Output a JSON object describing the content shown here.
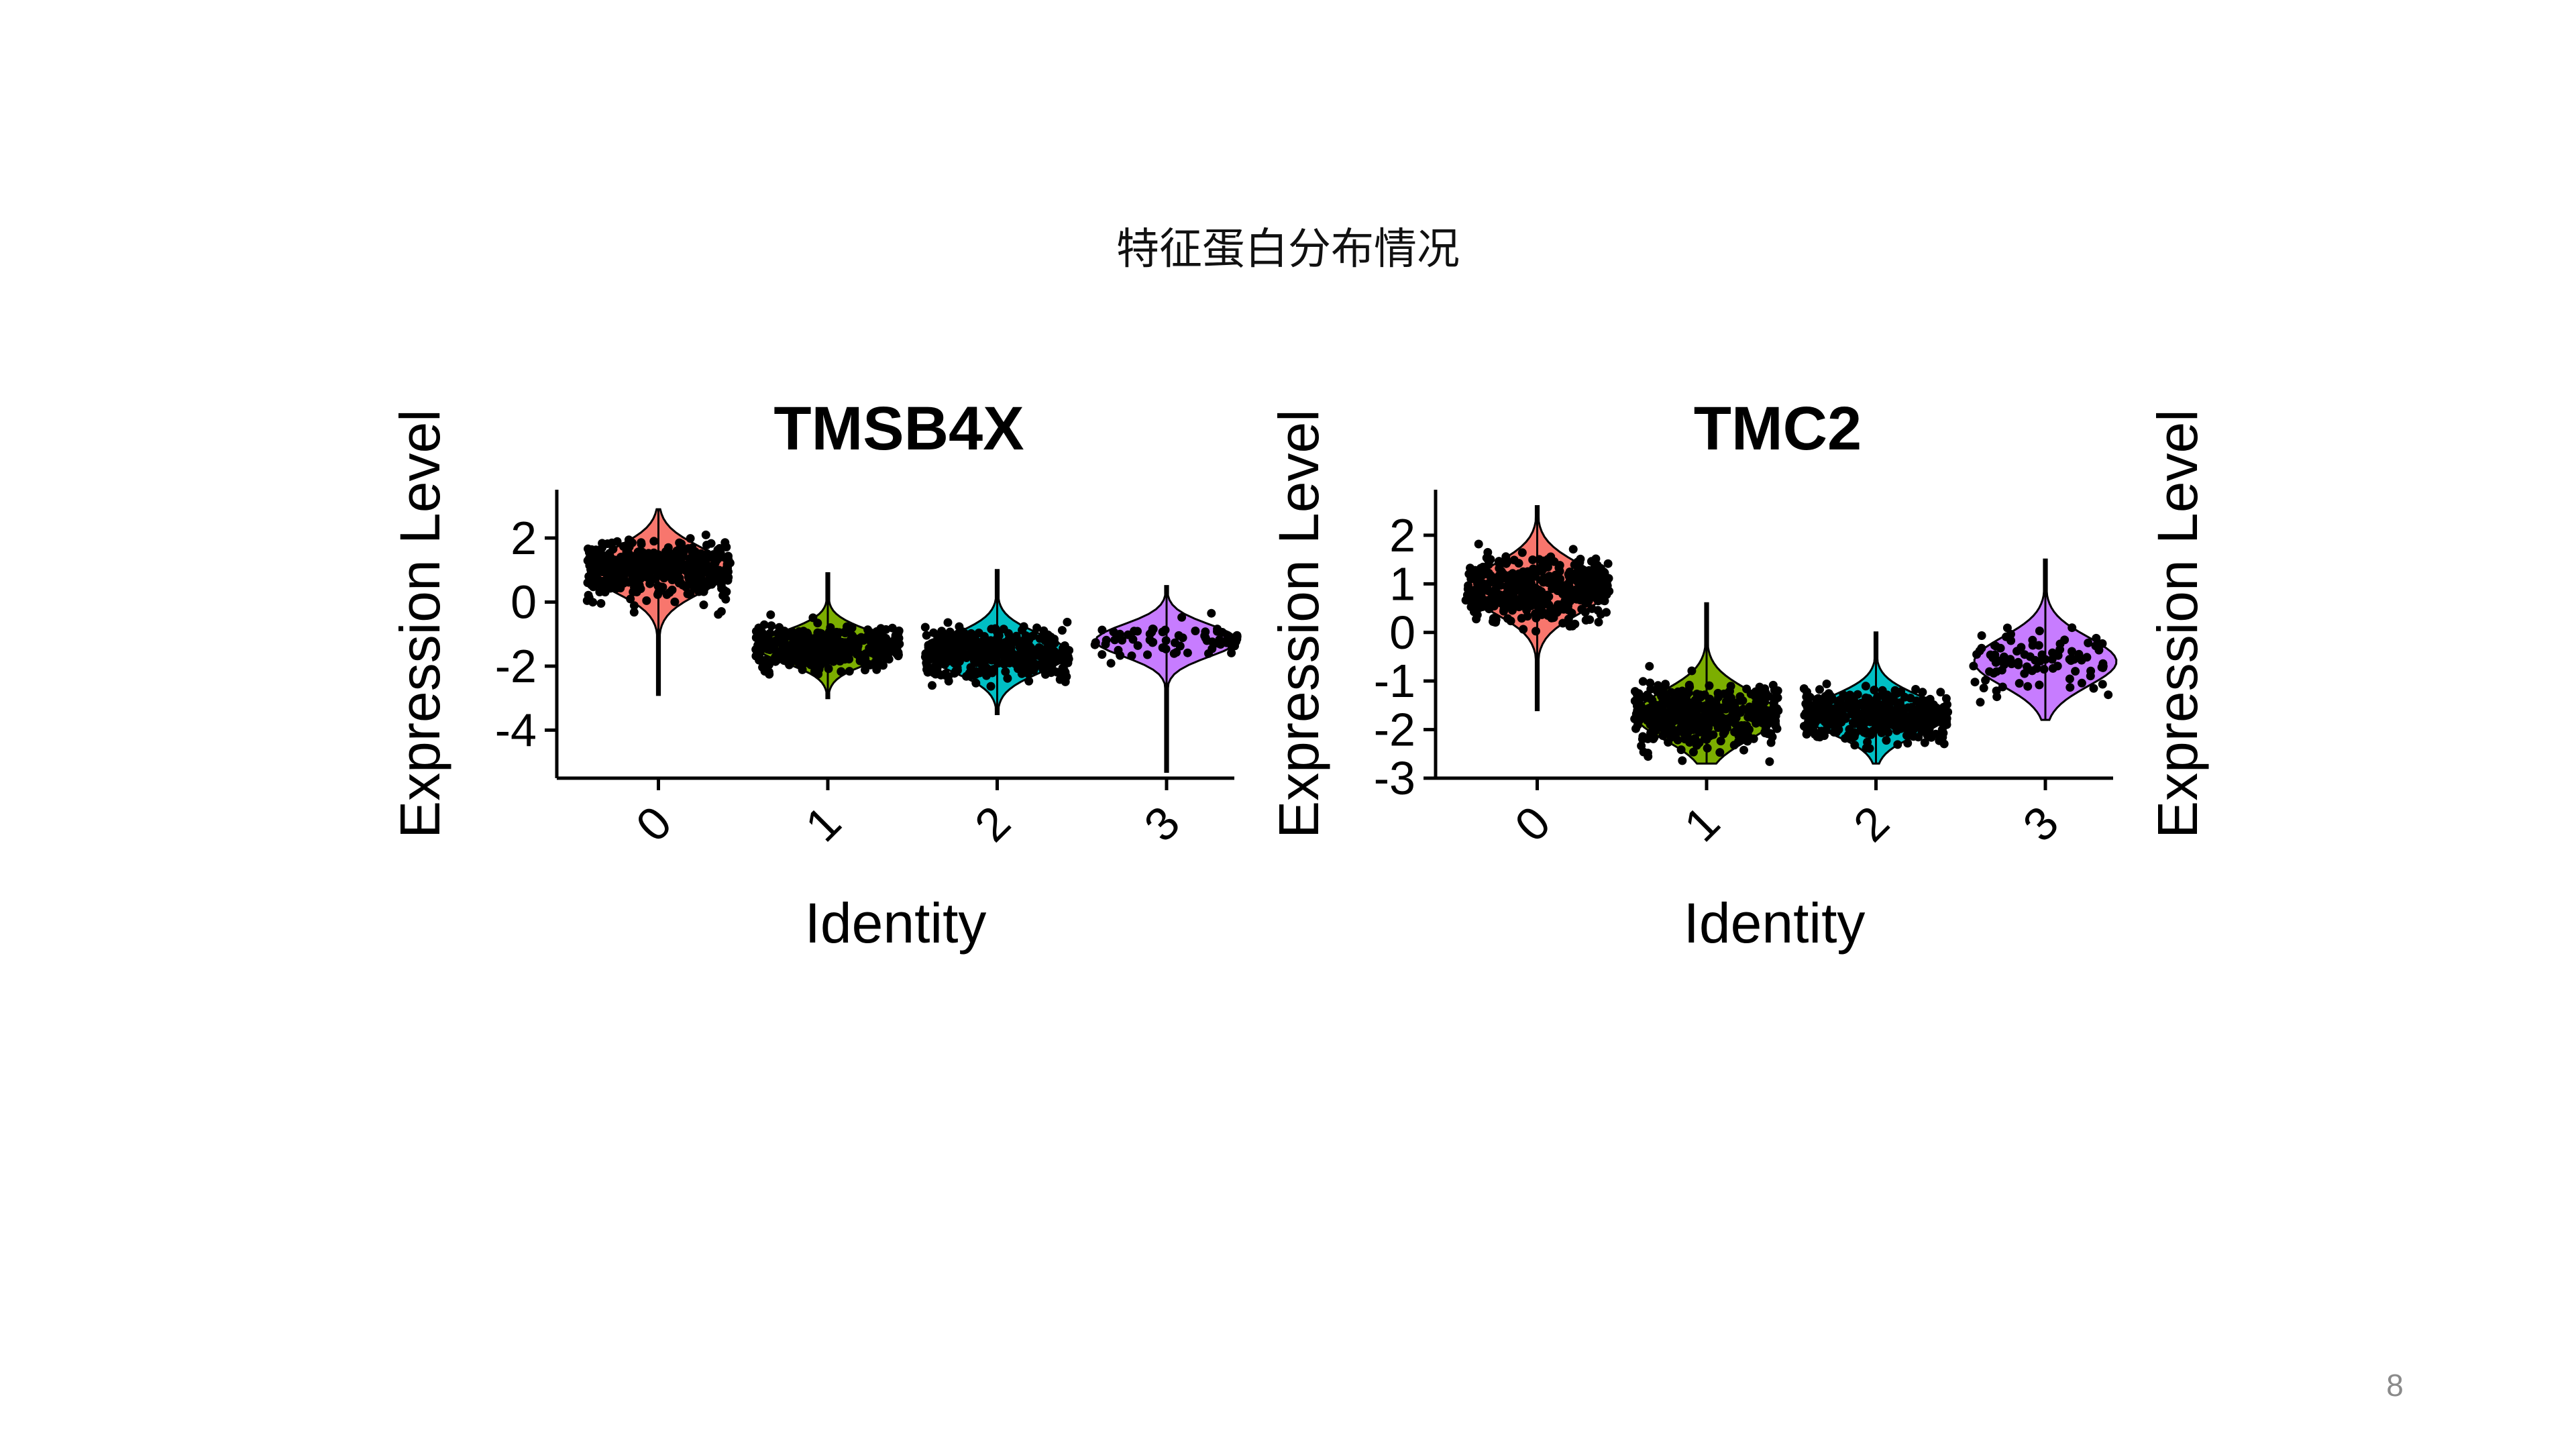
{
  "slide": {
    "title": "特征蛋白分布情况",
    "page_number": "8"
  },
  "chart_data": [
    {
      "type": "violin",
      "title": "TMSB4X",
      "xlabel": "Identity",
      "ylabel": "Expression Level",
      "categories": [
        "0",
        "1",
        "2",
        "3"
      ],
      "ylim": [
        -5.5,
        3.3
      ],
      "yticks": [
        2,
        0,
        -2,
        -4
      ],
      "jitter_points": true,
      "series": [
        {
          "category": "0",
          "color": "#F8766D",
          "min": -2.9,
          "max": 2.9,
          "median": 1.0,
          "spread": 0.7
        },
        {
          "category": "1",
          "color": "#7CAE00",
          "min": -3.0,
          "max": 0.9,
          "median": -1.4,
          "spread": 0.5
        },
        {
          "category": "2",
          "color": "#00BFC4",
          "min": -3.5,
          "max": 1.0,
          "median": -1.6,
          "spread": 0.6
        },
        {
          "category": "3",
          "color": "#C77CFF",
          "min": -5.3,
          "max": 0.5,
          "median": -1.2,
          "spread": 0.5
        }
      ]
    },
    {
      "type": "violin",
      "title": "TMC2",
      "xlabel": "Identity",
      "ylabel": "Expression Level",
      "categories": [
        "0",
        "1",
        "2",
        "3"
      ],
      "ylim": [
        -3.0,
        2.8
      ],
      "yticks": [
        2,
        1,
        0,
        -1,
        -2,
        -3
      ],
      "jitter_points": true,
      "series": [
        {
          "category": "0",
          "color": "#F8766D",
          "min": -1.6,
          "max": 2.6,
          "median": 0.9,
          "spread": 0.5
        },
        {
          "category": "1",
          "color": "#7CAE00",
          "min": -2.7,
          "max": 0.6,
          "median": -1.7,
          "spread": 0.5
        },
        {
          "category": "2",
          "color": "#00BFC4",
          "min": -2.7,
          "max": 0.0,
          "median": -1.7,
          "spread": 0.4
        },
        {
          "category": "3",
          "color": "#C77CFF",
          "min": -1.8,
          "max": 1.5,
          "median": -0.6,
          "spread": 0.5
        }
      ]
    }
  ],
  "extra_axis_label": "Expression Level"
}
